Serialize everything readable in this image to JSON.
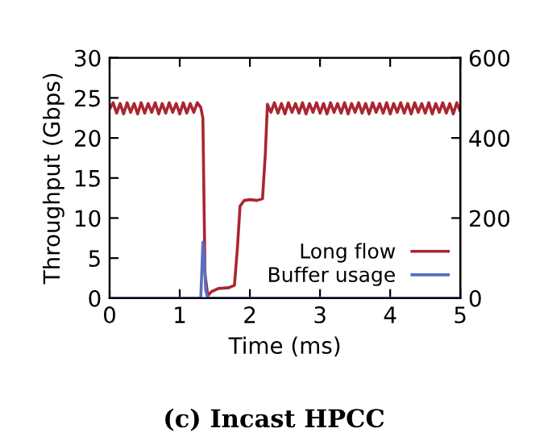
{
  "chart_data": {
    "type": "line",
    "title": "(c) Incast HPCC",
    "xlabel": "Time (ms)",
    "ylabel": "Throughput (Gbps)",
    "xlim": [
      0,
      5
    ],
    "xticks": [
      0,
      1,
      2,
      3,
      4,
      5
    ],
    "ylim": [
      0,
      30
    ],
    "yticks": [
      0,
      5,
      10,
      15,
      20,
      25,
      30
    ],
    "y2lim": [
      0,
      600
    ],
    "y2ticks": [
      0,
      200,
      400,
      600
    ],
    "legend": "bottom right",
    "grid": false,
    "line_style": "solid",
    "marker": "none",
    "series": [
      {
        "name": "Long flow",
        "color": "#aa2630",
        "x": [
          0,
          0.05,
          0.1,
          0.15,
          0.2,
          0.25,
          0.3,
          0.35,
          0.4,
          0.45,
          0.5,
          0.55,
          0.6,
          0.65,
          0.7,
          0.75,
          0.8,
          0.85,
          0.9,
          0.95,
          1.0,
          1.05,
          1.1,
          1.15,
          1.2,
          1.25,
          1.3,
          1.33,
          1.36,
          1.4,
          1.45,
          1.55,
          1.7,
          1.78,
          1.82,
          1.86,
          1.92,
          2.0,
          2.1,
          2.18,
          2.22,
          2.25,
          2.3,
          2.35,
          2.4,
          2.45,
          2.5,
          2.55,
          2.6,
          2.65,
          2.7,
          2.75,
          2.8,
          2.85,
          2.9,
          2.95,
          3.0,
          3.05,
          3.1,
          3.15,
          3.2,
          3.25,
          3.3,
          3.35,
          3.4,
          3.45,
          3.5,
          3.55,
          3.6,
          3.65,
          3.7,
          3.75,
          3.8,
          3.85,
          3.9,
          3.95,
          4.0,
          4.05,
          4.1,
          4.15,
          4.2,
          4.25,
          4.3,
          4.35,
          4.4,
          4.45,
          4.5,
          4.55,
          4.6,
          4.65,
          4.7,
          4.75,
          4.8,
          4.85,
          4.9,
          4.95,
          5.0
        ],
        "values": [
          23.6,
          24.4,
          23.1,
          24.3,
          23.0,
          24.4,
          23.2,
          24.3,
          23.0,
          24.4,
          23.1,
          24.3,
          23.2,
          24.4,
          23.0,
          24.3,
          23.1,
          24.4,
          23.2,
          24.3,
          23.0,
          24.4,
          23.1,
          24.3,
          23.2,
          24.4,
          23.8,
          22.5,
          3,
          0.3,
          0.8,
          1.2,
          1.3,
          1.6,
          6,
          11.5,
          12.2,
          12.3,
          12.2,
          12.4,
          18,
          24.2,
          23.2,
          24.4,
          23.1,
          24.3,
          23.0,
          24.4,
          23.2,
          24.3,
          23.1,
          24.4,
          23.0,
          24.3,
          23.2,
          24.4,
          23.1,
          24.3,
          23.0,
          24.4,
          23.2,
          24.3,
          23.1,
          24.4,
          23.0,
          24.3,
          23.2,
          24.4,
          23.1,
          24.3,
          23.0,
          24.4,
          23.2,
          24.3,
          23.1,
          24.4,
          23.0,
          24.3,
          23.2,
          24.4,
          23.1,
          24.3,
          23.0,
          24.4,
          23.2,
          24.3,
          23.1,
          24.4,
          23.0,
          24.3,
          23.2,
          24.4,
          23.1,
          24.3,
          23.0,
          24.4,
          23.3
        ]
      },
      {
        "name": "Buffer usage",
        "color": "#5a6ec0",
        "axis": "y2",
        "x": [
          0,
          1.3,
          1.33,
          1.35,
          1.37,
          1.4,
          5
        ],
        "values": [
          0,
          0,
          140,
          100,
          20,
          0,
          0
        ]
      }
    ]
  }
}
